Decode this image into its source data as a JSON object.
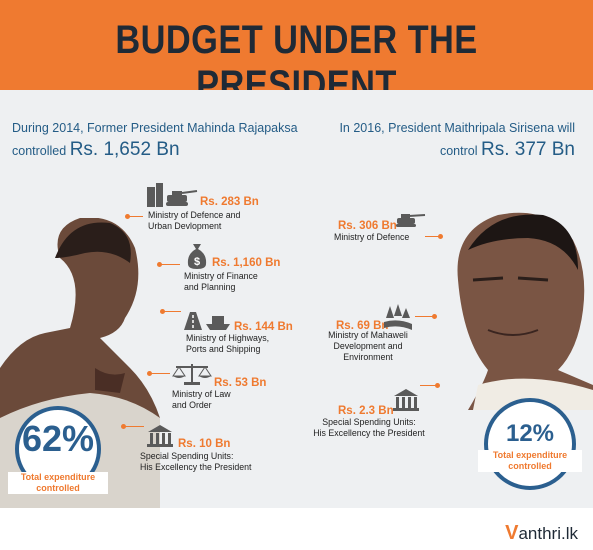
{
  "header": {
    "title": "BUDGET UNDER THE PRESIDENT"
  },
  "left": {
    "intro_line1": "During 2014, Former President Mahinda Rajapaksa",
    "intro_line2_prefix": "controlled",
    "intro_amount": "Rs. 1,652 Bn",
    "ministries": [
      {
        "amount": "Rs. 283 Bn",
        "name_line1": "Ministry of Defence and",
        "name_line2": "Urban Devlopment",
        "icon": "tank-and-buildings-icon"
      },
      {
        "amount": "Rs. 1,160 Bn",
        "name_line1": "Ministry of Finance",
        "name_line2": "and Planning",
        "icon": "money-bag-icon"
      },
      {
        "amount": "Rs. 144 Bn",
        "name_line1": "Ministry of Highways,",
        "name_line2": "Ports and Shipping",
        "icon": "highway-ship-icon"
      },
      {
        "amount": "Rs. 53 Bn",
        "name_line1": "Ministry of Law",
        "name_line2": "and Order",
        "icon": "scales-icon"
      },
      {
        "amount": "Rs. 10 Bn",
        "name_line1": "Special Spending Units:",
        "name_line2": "His Excellency the President",
        "icon": "government-building-icon"
      }
    ],
    "percent": "62%",
    "percent_label_line1": "Total expenditure",
    "percent_label_line2": "controlled"
  },
  "right": {
    "intro_line1": "In 2016, President Maithripala Sirisena will",
    "intro_line2_prefix": "control",
    "intro_amount": "Rs. 377 Bn",
    "ministries": [
      {
        "amount": "Rs. 306 Bn",
        "name_line1": "Ministry of Defence",
        "name_line2": "",
        "icon": "tank-icon"
      },
      {
        "amount": "Rs. 69 Bn",
        "name_line1": "Ministry of Mahaweli",
        "name_line2": "Development and",
        "name_line3": "Environment",
        "icon": "forest-river-icon"
      },
      {
        "amount": "Rs. 2.3 Bn",
        "name_line1": "Special Spending Units:",
        "name_line2": "His Excellency the President",
        "icon": "government-building-icon"
      }
    ],
    "percent": "12%",
    "percent_label_line1": "Total expenditure",
    "percent_label_line2": "controlled"
  },
  "footer": {
    "logo_v": "V",
    "logo_text": "anthri.lk"
  },
  "colors": {
    "orange": "#ef7a30",
    "navy": "#2b5f8f",
    "dark": "#1f2a36"
  }
}
